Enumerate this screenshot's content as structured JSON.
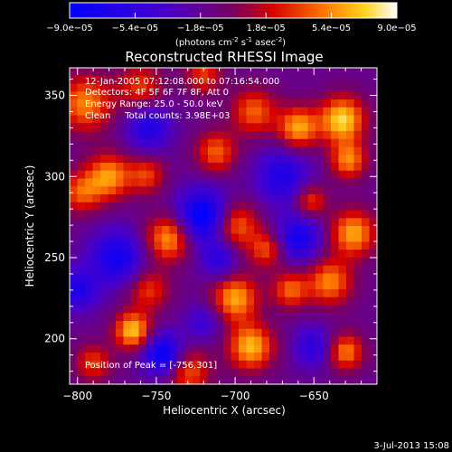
{
  "chart_data": {
    "type": "heatmap",
    "title": "Reconstructed RHESSI Image",
    "xlabel": "Heliocentric X (arcsec)",
    "ylabel": "Heliocentric Y (arcsec)",
    "xlim": [
      -805,
      -610
    ],
    "ylim": [
      172,
      367
    ],
    "xticks": [
      -800,
      -750,
      -700,
      -650
    ],
    "yticks": [
      200,
      250,
      300,
      350
    ],
    "colorbar": {
      "range": [
        -9e-05,
        9e-05
      ],
      "ticks": [
        "-9.0e-05",
        "-5.4e-05",
        "-1.8e-05",
        "1.8e-05",
        "5.4e-05",
        "9.0e-05"
      ],
      "unit_label": "(photons cm",
      "unit_exp1": "-2",
      "unit_mid": " s",
      "unit_exp2": "-1",
      "unit_end": " asec",
      "unit_exp3": "-2",
      "unit_close": ")"
    },
    "annotations": [
      "12-Jan-2005 07:12:08.000 to 07:16:54.000",
      "Detectors: 4F 5F 6F 7F 8F, Att 0",
      "Energy Range: 25.0 - 50.0 keV",
      "Clean     Total counts: 3.98E+03"
    ],
    "peak_text": "Position of Peak = [-756,301]",
    "peak": [
      -756,
      301
    ],
    "sources": [
      {
        "x": -795,
        "y": 345,
        "s": 12,
        "a": 0.75
      },
      {
        "x": -760,
        "y": 355,
        "s": 10,
        "a": 0.55
      },
      {
        "x": -720,
        "y": 362,
        "s": 8,
        "a": 0.55
      },
      {
        "x": -688,
        "y": 340,
        "s": 10,
        "a": 0.65
      },
      {
        "x": -660,
        "y": 330,
        "s": 9,
        "a": 0.85
      },
      {
        "x": -632,
        "y": 335,
        "s": 10,
        "a": 1.0
      },
      {
        "x": -628,
        "y": 310,
        "s": 8,
        "a": 0.75
      },
      {
        "x": -780,
        "y": 300,
        "s": 10,
        "a": 0.8
      },
      {
        "x": -798,
        "y": 290,
        "s": 9,
        "a": 0.6
      },
      {
        "x": -756,
        "y": 301,
        "s": 8,
        "a": 0.55
      },
      {
        "x": -712,
        "y": 315,
        "s": 9,
        "a": 0.65
      },
      {
        "x": -742,
        "y": 262,
        "s": 10,
        "a": 0.85
      },
      {
        "x": -700,
        "y": 270,
        "s": 10,
        "a": 0.75
      },
      {
        "x": -680,
        "y": 255,
        "s": 8,
        "a": 0.6
      },
      {
        "x": -625,
        "y": 265,
        "s": 10,
        "a": 0.85
      },
      {
        "x": -652,
        "y": 285,
        "s": 7,
        "a": 0.6
      },
      {
        "x": -755,
        "y": 230,
        "s": 9,
        "a": 0.55
      },
      {
        "x": -700,
        "y": 225,
        "s": 10,
        "a": 0.85
      },
      {
        "x": -665,
        "y": 230,
        "s": 8,
        "a": 0.65
      },
      {
        "x": -640,
        "y": 235,
        "s": 10,
        "a": 0.75
      },
      {
        "x": -765,
        "y": 205,
        "s": 8,
        "a": 0.95
      },
      {
        "x": -690,
        "y": 195,
        "s": 10,
        "a": 0.9
      },
      {
        "x": -630,
        "y": 192,
        "s": 8,
        "a": 0.75
      },
      {
        "x": -730,
        "y": 180,
        "s": 10,
        "a": 0.65
      },
      {
        "x": -790,
        "y": 185,
        "s": 8,
        "a": 0.55
      },
      {
        "x": -755,
        "y": 330,
        "s": 10,
        "a": -0.6
      },
      {
        "x": -720,
        "y": 275,
        "s": 12,
        "a": -0.95
      },
      {
        "x": -775,
        "y": 250,
        "s": 12,
        "a": -0.7
      },
      {
        "x": -670,
        "y": 300,
        "s": 12,
        "a": -0.6
      },
      {
        "x": -660,
        "y": 262,
        "s": 10,
        "a": -0.7
      },
      {
        "x": -745,
        "y": 190,
        "s": 9,
        "a": -0.9
      },
      {
        "x": -800,
        "y": 230,
        "s": 9,
        "a": -0.6
      },
      {
        "x": -650,
        "y": 195,
        "s": 9,
        "a": -0.5
      },
      {
        "x": -710,
        "y": 248,
        "s": 8,
        "a": -0.5
      },
      {
        "x": -720,
        "y": 210,
        "s": 8,
        "a": -0.4
      }
    ]
  },
  "footer_timestamp": "3-Jul-2013 15:08"
}
